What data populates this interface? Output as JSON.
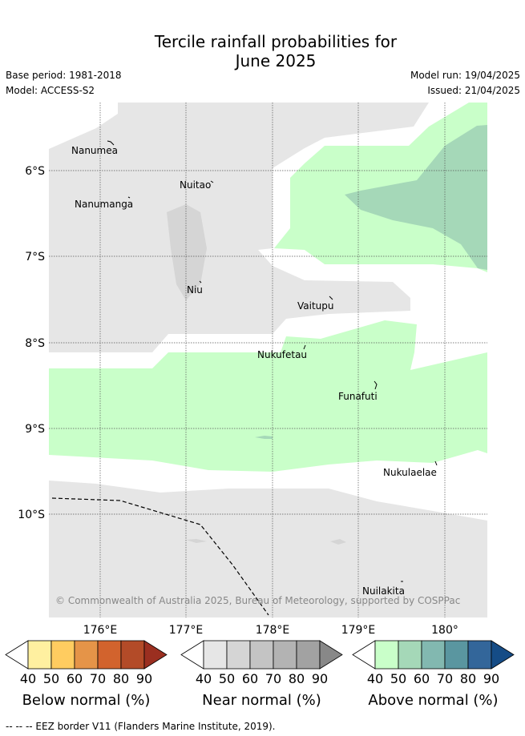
{
  "title_line1": "Tercile rainfall probabilities for",
  "title_line2": "June 2025",
  "base_period": "Base period: 1981-2018",
  "model": "Model: ACCESS-S2",
  "model_run": "Model run: 19/04/2025",
  "issued": "Issued: 21/04/2025",
  "credit": "© Commonwealth of Australia 2025, Bureau of Meteorology, supported by COSPPac",
  "footer": "--  --  -- EEZ border V11 (Flanders Marine Institute, 2019).",
  "islands": [
    "Nanumea",
    "Nuitao",
    "Nanumanga",
    "Niu",
    "Vaitupu",
    "Nukufetau",
    "Funafuti",
    "Nukulaelae",
    "Nuilakita"
  ],
  "lat_labels": [
    "6°S",
    "7°S",
    "8°S",
    "9°S",
    "10°S"
  ],
  "lon_labels": [
    "176°E",
    "177°E",
    "178°E",
    "179°E",
    "180°"
  ],
  "colorbars": [
    {
      "title": "Below normal (%)",
      "ticks": [
        "40",
        "50",
        "60",
        "70",
        "80",
        "90"
      ],
      "colors": [
        "#ffffff",
        "#fff0a0",
        "#ffcc60",
        "#e59448",
        "#d2632d",
        "#b34b28",
        "#9b2f20"
      ]
    },
    {
      "title": "Near normal (%)",
      "ticks": [
        "40",
        "50",
        "60",
        "70",
        "80",
        "90"
      ],
      "colors": [
        "#ffffff",
        "#e6e6e6",
        "#d5d5d5",
        "#c4c4c4",
        "#b3b3b3",
        "#a2a2a2",
        "#888888"
      ]
    },
    {
      "title": "Above normal (%)",
      "ticks": [
        "40",
        "50",
        "60",
        "70",
        "80",
        "90"
      ],
      "colors": [
        "#ffffff",
        "#c9ffc9",
        "#a5d8b8",
        "#82b8b0",
        "#5a96a0",
        "#33669a",
        "#154c86"
      ]
    }
  ]
}
